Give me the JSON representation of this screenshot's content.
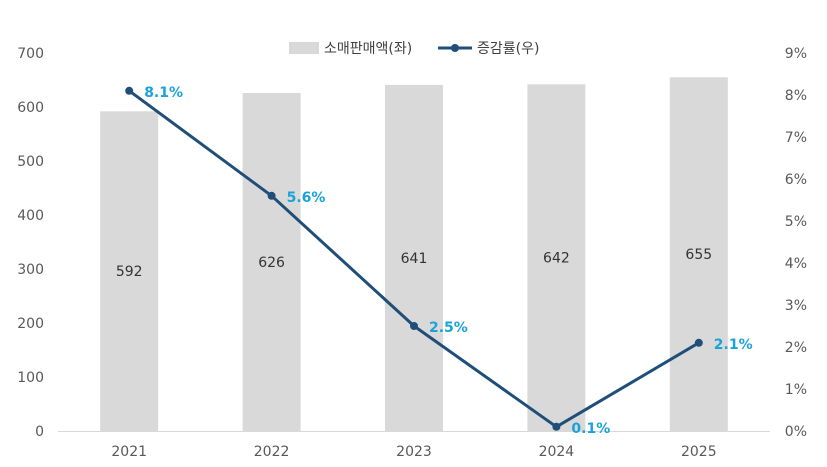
{
  "chart_data": {
    "type": "bar+line",
    "categories": [
      "2021",
      "2022",
      "2023",
      "2024",
      "2025"
    ],
    "series": [
      {
        "name": "소매판매액(좌)",
        "type": "bar",
        "axis": "left",
        "values": [
          592,
          626,
          641,
          642,
          655
        ],
        "labels": [
          "592",
          "626",
          "641",
          "642",
          "655"
        ],
        "color": "#d9d9d9"
      },
      {
        "name": "증감률(우)",
        "type": "line",
        "axis": "right",
        "values": [
          8.1,
          5.6,
          2.5,
          0.1,
          2.1
        ],
        "labels": [
          "8.1%",
          "5.6%",
          "2.5%",
          "0.1%",
          "2.1%"
        ],
        "color": "#1f4e79",
        "label_color": "#1aa3d9"
      }
    ],
    "y_left": {
      "range": [
        0,
        700
      ],
      "ticks": [
        "0",
        "100",
        "200",
        "300",
        "400",
        "500",
        "600",
        "700"
      ]
    },
    "y_right": {
      "range": [
        0,
        9
      ],
      "ticks": [
        "0%",
        "1%",
        "2%",
        "3%",
        "4%",
        "5%",
        "6%",
        "7%",
        "8%",
        "9%"
      ]
    },
    "legend": {
      "placement": "top-center",
      "items": [
        "소매판매액(좌)",
        "증감률(우)"
      ]
    },
    "grid": false
  }
}
